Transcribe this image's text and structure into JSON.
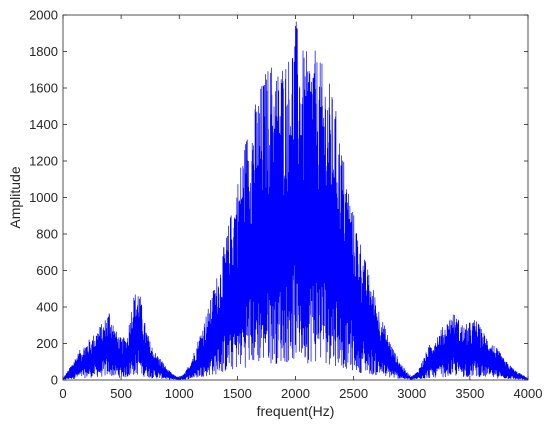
{
  "chart_data": {
    "type": "line",
    "title": "",
    "xlabel": "frequent(Hz)",
    "ylabel": "Amplitude",
    "xlim": [
      0,
      4000
    ],
    "ylim": [
      0,
      2000
    ],
    "grid": false,
    "legend": "none",
    "x_ticks": [
      0,
      500,
      1000,
      1500,
      2000,
      2500,
      3000,
      3500,
      4000
    ],
    "x_tick_labels": [
      "0",
      "500",
      "1000",
      "1500",
      "2000",
      "2500",
      "3000",
      "3500",
      "4000"
    ],
    "y_ticks": [
      0,
      200,
      400,
      600,
      800,
      1000,
      1200,
      1400,
      1600,
      1800,
      2000
    ],
    "y_tick_labels": [
      "0",
      "200",
      "400",
      "600",
      "800",
      "1000",
      "1200",
      "1400",
      "1600",
      "1800",
      "2000"
    ],
    "series": [
      {
        "color": "#0000ff",
        "peaks": [
          [
            0,
            10
          ],
          [
            50,
            60
          ],
          [
            100,
            120
          ],
          [
            150,
            170
          ],
          [
            200,
            210
          ],
          [
            250,
            240
          ],
          [
            300,
            290
          ],
          [
            350,
            320
          ],
          [
            400,
            400
          ],
          [
            450,
            280
          ],
          [
            500,
            230
          ],
          [
            550,
            240
          ],
          [
            600,
            460
          ],
          [
            650,
            520
          ],
          [
            700,
            330
          ],
          [
            750,
            210
          ],
          [
            800,
            150
          ],
          [
            850,
            110
          ],
          [
            900,
            60
          ],
          [
            950,
            30
          ],
          [
            1000,
            15
          ],
          [
            1050,
            40
          ],
          [
            1100,
            110
          ],
          [
            1150,
            200
          ],
          [
            1200,
            300
          ],
          [
            1250,
            400
          ],
          [
            1300,
            520
          ],
          [
            1350,
            640
          ],
          [
            1400,
            780
          ],
          [
            1450,
            940
          ],
          [
            1500,
            1100
          ],
          [
            1550,
            1280
          ],
          [
            1600,
            1420
          ],
          [
            1650,
            1520
          ],
          [
            1700,
            1620
          ],
          [
            1750,
            1720
          ],
          [
            1800,
            1760
          ],
          [
            1850,
            1720
          ],
          [
            1900,
            1780
          ],
          [
            1950,
            1800
          ],
          [
            2000,
            2000
          ],
          [
            2050,
            1820
          ],
          [
            2100,
            1800
          ],
          [
            2150,
            1840
          ],
          [
            2200,
            1760
          ],
          [
            2250,
            1720
          ],
          [
            2300,
            1620
          ],
          [
            2350,
            1480
          ],
          [
            2400,
            1280
          ],
          [
            2450,
            1100
          ],
          [
            2500,
            920
          ],
          [
            2550,
            800
          ],
          [
            2600,
            660
          ],
          [
            2650,
            550
          ],
          [
            2700,
            440
          ],
          [
            2750,
            330
          ],
          [
            2800,
            240
          ],
          [
            2850,
            160
          ],
          [
            2900,
            100
          ],
          [
            2950,
            50
          ],
          [
            3000,
            20
          ],
          [
            3050,
            50
          ],
          [
            3100,
            120
          ],
          [
            3150,
            190
          ],
          [
            3200,
            240
          ],
          [
            3250,
            280
          ],
          [
            3300,
            320
          ],
          [
            3350,
            380
          ],
          [
            3400,
            340
          ],
          [
            3450,
            300
          ],
          [
            3500,
            320
          ],
          [
            3550,
            340
          ],
          [
            3600,
            280
          ],
          [
            3650,
            240
          ],
          [
            3700,
            200
          ],
          [
            3750,
            160
          ],
          [
            3800,
            110
          ],
          [
            3850,
            80
          ],
          [
            3900,
            50
          ],
          [
            3950,
            30
          ],
          [
            4000,
            10
          ]
        ]
      }
    ]
  }
}
